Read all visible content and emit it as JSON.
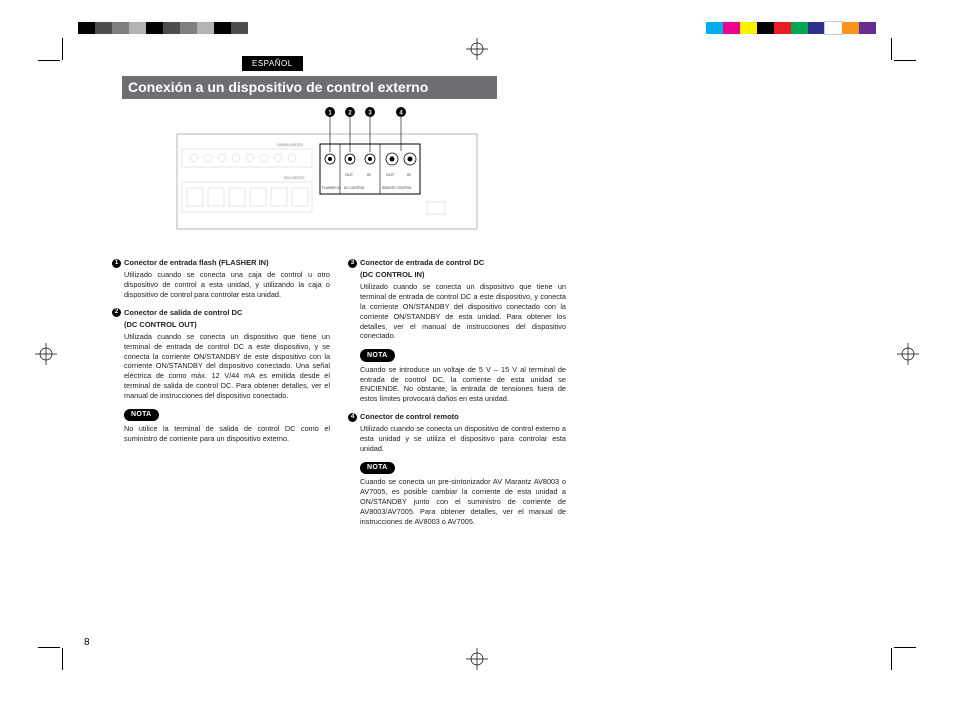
{
  "colorbar_left": [
    "#000000",
    "#4d4d4d",
    "#808080",
    "#b3b3b3",
    "#000000",
    "#4d4d4d",
    "#808080",
    "#b3b3b3",
    "#000000",
    "#4d4d4d"
  ],
  "colorbar_right": [
    "#00aeef",
    "#ec008c",
    "#fff200",
    "#000000",
    "#ed1c24",
    "#00a651",
    "#2e3192",
    "#ffffff",
    "#f7941e",
    "#662d91"
  ],
  "language_tab": "ESPAÑOL",
  "heading": "Conexión a un dispositivo de control externo",
  "page_number": "8",
  "diagram": {
    "callouts": [
      "1",
      "2",
      "3",
      "4"
    ],
    "panel_labels": {
      "left_upper": "UNBALANCED",
      "left_lower": "BALANCED",
      "flasher": "FLASHER IN",
      "dc_out": "OUT",
      "dc_in": "IN",
      "dc_label": "DC CONTROL",
      "remote_out": "OUT",
      "remote_in": "IN",
      "remote_label": "REMOTE CONTROL"
    }
  },
  "left_col": {
    "item1": {
      "num": "1",
      "title": "Conector de entrada flash (FLASHER IN)",
      "body": "Utilizado cuando se conecta una caja de control u otro dispositivo de control a esta unidad, y utilizando la caja o dispositivo de control para controlar esta unidad."
    },
    "item2": {
      "num": "2",
      "title": "Conector de salida de control DC",
      "subtitle": "(DC CONTROL OUT)",
      "body": "Utilizada cuando se conecta un dispositivo que tiene un terminal de entrada de control DC a este dispositivo, y se conecta la corriente ON/STANDBY de este dispositivo con la corriente ON/STANDBY del dispositivo conectado.\nUna señal eléctrica de como máx. 12 V/44 mA es emitida desde el terminal de salida de control DC. Para obtener detalles, ver el manual de instrucciones del dispositivo conectado."
    },
    "nota_label": "NOTA",
    "nota_body": "No utilice la terminal de salida de control DC como el suministro de corriente para un dispositivo externo."
  },
  "right_col": {
    "item3": {
      "num": "3",
      "title": "Conector de entrada de control DC",
      "subtitle": "(DC CONTROL IN)",
      "body": "Utilizado cuando se conecta un dispositivo que tiene un terminal de entrada de control DC a este dispositivo, y conecta la corriente ON/STANDBY del dispositivo conectado con la corriente ON/STANDBY de esta unidad.\nPara obtener los detalles, ver el manual de instrucciones del dispositivo conectado."
    },
    "nota1_label": "NOTA",
    "nota1_body": "Cuando se introduce un voltaje de 5 V – 15 V al terminal de entrada de control DC, la corriente de esta unidad se ENCIENDE.\nNo obstante, la entrada de tensiones fuera de estos límites provocará daños en esta unidad.",
    "item4": {
      "num": "4",
      "title": "Conector de control remoto",
      "body": "Utilizado cuando se conecta un dispositivo de control externo a esta unidad y se utiliza el dispositivo para controlar esta unidad."
    },
    "nota2_label": "NOTA",
    "nota2_body": "Cuando se conecta un pre-sintonizador AV Marantz AV8003 o AV7005, es posible cambiar la corriente de esta unidad a ON/STANDBY junto con el suministro de corriente de AV8003/AV7005.\nPara obtener detalles, ver el manual de instrucciones de AV8003 o AV7005."
  }
}
